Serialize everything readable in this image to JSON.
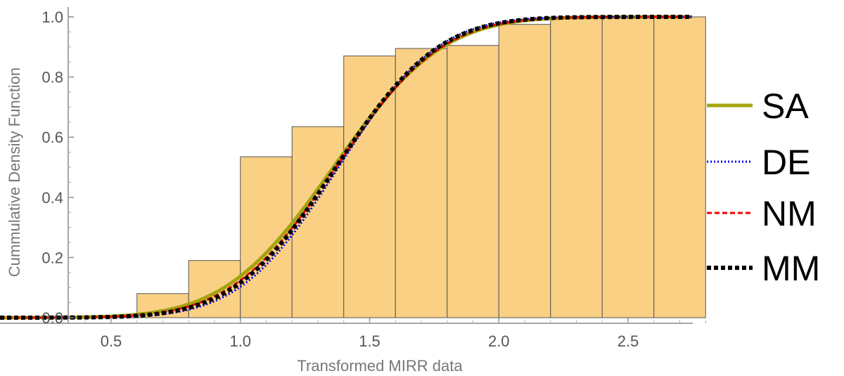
{
  "chart_data": {
    "type": "histogram",
    "xlabel": "Transformed MIRR data",
    "ylabel": "Cummulative Density Function",
    "xlim": [
      0.35,
      2.82
    ],
    "ylim": [
      0,
      1.0
    ],
    "x_ticks": [
      {
        "value": 0.5,
        "label": "0.5"
      },
      {
        "value": 1.0,
        "label": "1.0"
      },
      {
        "value": 1.5,
        "label": "1.5"
      },
      {
        "value": 2.0,
        "label": "2.0"
      },
      {
        "value": 2.5,
        "label": "2.5"
      }
    ],
    "y_ticks": [
      {
        "value": 0.0,
        "label": "0.0"
      },
      {
        "value": 0.2,
        "label": "0.2"
      },
      {
        "value": 0.4,
        "label": "0.4"
      },
      {
        "value": 0.6,
        "label": "0.6"
      },
      {
        "value": 0.8,
        "label": "0.8"
      },
      {
        "value": 1.0,
        "label": "1.0"
      }
    ],
    "bars": [
      {
        "x0": 0.4,
        "x1": 0.6,
        "value": 0.005
      },
      {
        "x0": 0.6,
        "x1": 0.8,
        "value": 0.08
      },
      {
        "x0": 0.8,
        "x1": 1.0,
        "value": 0.19
      },
      {
        "x0": 1.0,
        "x1": 1.2,
        "value": 0.535
      },
      {
        "x0": 1.2,
        "x1": 1.4,
        "value": 0.635
      },
      {
        "x0": 1.4,
        "x1": 1.6,
        "value": 0.87
      },
      {
        "x0": 1.6,
        "x1": 1.8,
        "value": 0.895
      },
      {
        "x0": 1.8,
        "x1": 2.0,
        "value": 0.905
      },
      {
        "x0": 2.0,
        "x1": 2.2,
        "value": 0.975
      },
      {
        "x0": 2.2,
        "x1": 2.4,
        "value": 1.0
      },
      {
        "x0": 2.4,
        "x1": 2.6,
        "value": 1.0
      },
      {
        "x0": 2.6,
        "x1": 2.8,
        "value": 1.0
      }
    ],
    "bar_color": "#fad085",
    "bar_edge_color": "#555555",
    "series": [
      {
        "name": "SA",
        "color": "#a4a40c",
        "style": "solid",
        "mean": 1.36,
        "sd": 0.33
      },
      {
        "name": "DE",
        "color": "#0000ee",
        "style": "dotted",
        "mean": 1.38,
        "sd": 0.3
      },
      {
        "name": "NM",
        "color": "#ee0000",
        "style": "dashed",
        "mean": 1.37,
        "sd": 0.32
      },
      {
        "name": "MM",
        "color": "#000000",
        "style": "dashed-thick",
        "mean": 1.37,
        "sd": 0.31
      }
    ],
    "legend_position": "right"
  }
}
